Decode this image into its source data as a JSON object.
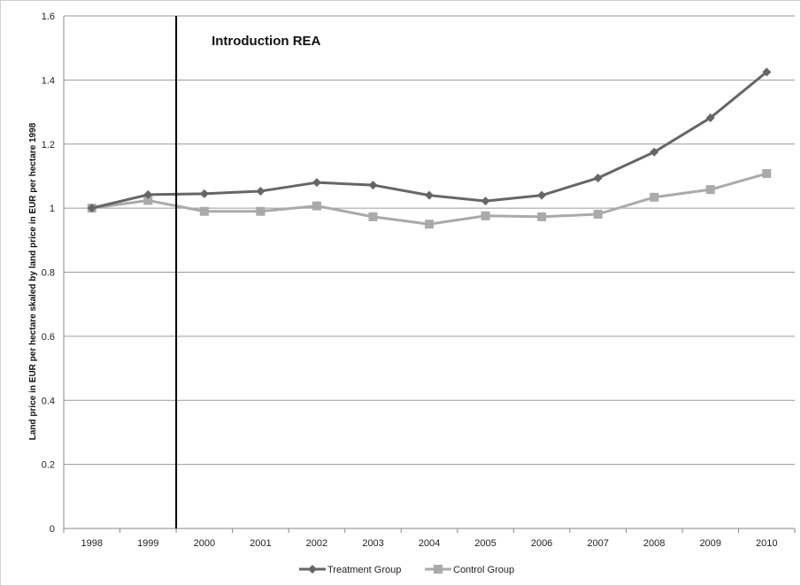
{
  "chart_data": {
    "type": "line",
    "title": "",
    "xlabel": "",
    "ylabel": "Land price in EUR per hectare skaled by land price in EUR per hectare 1998",
    "categories": [
      "1998",
      "1999",
      "2000",
      "2001",
      "2002",
      "2003",
      "2004",
      "2005",
      "2006",
      "2007",
      "2008",
      "2009",
      "2010"
    ],
    "ylim": [
      0,
      1.6
    ],
    "yticks": [
      "0",
      "0.2",
      "0.4",
      "0.6",
      "0.8",
      "1",
      "1.2",
      "1.4",
      "1.6"
    ],
    "grid": true,
    "legend_position": "bottom",
    "series": [
      {
        "name": "Treatment Group",
        "color": "#666666",
        "marker": "diamond",
        "values": [
          1.0,
          1.042,
          1.045,
          1.053,
          1.08,
          1.072,
          1.04,
          1.022,
          1.04,
          1.094,
          1.175,
          1.282,
          1.425
        ]
      },
      {
        "name": "Control Group",
        "color": "#aaaaaa",
        "marker": "square",
        "values": [
          1.0,
          1.024,
          0.99,
          0.99,
          1.007,
          0.973,
          0.95,
          0.976,
          0.973,
          0.981,
          1.034,
          1.058,
          1.108
        ]
      }
    ],
    "annotations": [
      {
        "text": "Introduction REA",
        "x_between": [
          "1999",
          "2000"
        ]
      }
    ]
  }
}
